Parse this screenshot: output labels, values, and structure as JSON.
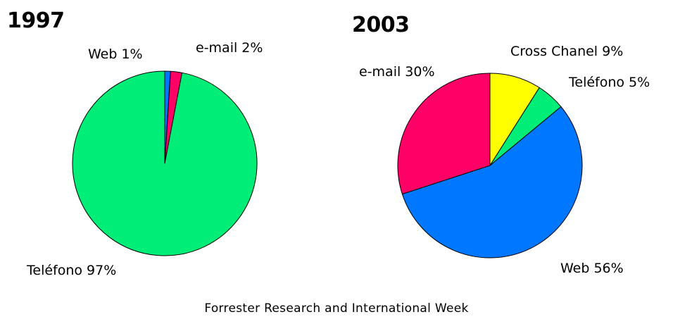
{
  "chart_data": [
    {
      "type": "pie",
      "title": "1997",
      "slices": [
        {
          "label": "Web 1%",
          "name": "Web",
          "value": 1,
          "color": "#0077ff"
        },
        {
          "label": "e-mail 2%",
          "name": "e-mail",
          "value": 2,
          "color": "#ff0066"
        },
        {
          "label": "Teléfono 97%",
          "name": "Teléfono",
          "value": 97,
          "color": "#00ee77"
        }
      ]
    },
    {
      "type": "pie",
      "title": "2003",
      "slices": [
        {
          "label": "Cross Chanel 9%",
          "name": "Cross Chanel",
          "value": 9,
          "color": "#ffff00"
        },
        {
          "label": "Teléfono 5%",
          "name": "Teléfono",
          "value": 5,
          "color": "#00ee77"
        },
        {
          "label": "Web 56%",
          "name": "Web",
          "value": 56,
          "color": "#0077ff"
        },
        {
          "label": "e-mail 30%",
          "name": "e-mail",
          "value": 30,
          "color": "#ff0066"
        }
      ]
    }
  ],
  "source": "Forrester Research and International Week"
}
